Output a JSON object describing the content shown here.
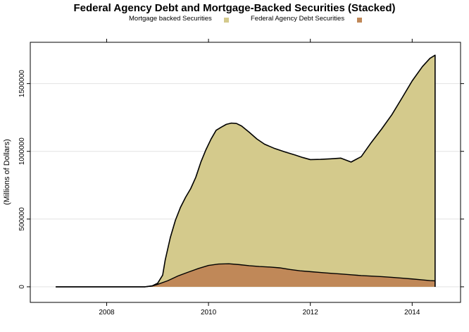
{
  "chart_data": {
    "type": "area",
    "stacked": true,
    "title": "Federal Agency Debt and Mortgage-Backed Securities (Stacked)",
    "xlabel": "",
    "ylabel": "(Millions of Dollars)",
    "xlim": [
      2006.5,
      2014.95
    ],
    "ylim": [
      -115000,
      1805000
    ],
    "x_ticks": [
      2008,
      2010,
      2012,
      2014
    ],
    "x_tick_labels": [
      "2008",
      "2010",
      "2012",
      "2014"
    ],
    "y_ticks": [
      0,
      500000,
      1000000,
      1500000
    ],
    "y_tick_labels": [
      "0",
      "500000",
      "1000000",
      "1500000"
    ],
    "grid": "horizontal",
    "legend_position": "top",
    "series": [
      {
        "name": "Federal Agency Debt Securities",
        "color": "#c08858",
        "points": [
          [
            2007.0,
            0
          ],
          [
            2008.0,
            0
          ],
          [
            2008.75,
            0
          ],
          [
            2008.9,
            6000
          ],
          [
            2009.0,
            18000
          ],
          [
            2009.2,
            45000
          ],
          [
            2009.4,
            80000
          ],
          [
            2009.6,
            108000
          ],
          [
            2009.8,
            135000
          ],
          [
            2010.0,
            158000
          ],
          [
            2010.2,
            168000
          ],
          [
            2010.4,
            170000
          ],
          [
            2010.6,
            164000
          ],
          [
            2010.8,
            156000
          ],
          [
            2011.0,
            150000
          ],
          [
            2011.2,
            146000
          ],
          [
            2011.4,
            140000
          ],
          [
            2011.6,
            128000
          ],
          [
            2011.8,
            118000
          ],
          [
            2012.0,
            112000
          ],
          [
            2012.2,
            106000
          ],
          [
            2012.4,
            100000
          ],
          [
            2012.6,
            95000
          ],
          [
            2012.8,
            89000
          ],
          [
            2013.0,
            83000
          ],
          [
            2013.2,
            79000
          ],
          [
            2013.4,
            75000
          ],
          [
            2013.6,
            70000
          ],
          [
            2013.8,
            64000
          ],
          [
            2014.0,
            58000
          ],
          [
            2014.2,
            51000
          ],
          [
            2014.35,
            46000
          ],
          [
            2014.45,
            44000
          ]
        ]
      },
      {
        "name": "Mortgage backed Securities",
        "color": "#d4ca8c",
        "points": [
          [
            2007.0,
            0
          ],
          [
            2008.0,
            0
          ],
          [
            2008.75,
            0
          ],
          [
            2008.9,
            2000
          ],
          [
            2009.0,
            8000
          ],
          [
            2009.1,
            55000
          ],
          [
            2009.15,
            160000
          ],
          [
            2009.25,
            310000
          ],
          [
            2009.35,
            420000
          ],
          [
            2009.45,
            500000
          ],
          [
            2009.55,
            560000
          ],
          [
            2009.65,
            610000
          ],
          [
            2009.75,
            680000
          ],
          [
            2009.85,
            780000
          ],
          [
            2009.95,
            860000
          ],
          [
            2010.05,
            930000
          ],
          [
            2010.15,
            990000
          ],
          [
            2010.25,
            1010000
          ],
          [
            2010.35,
            1030000
          ],
          [
            2010.45,
            1040000
          ],
          [
            2010.55,
            1040000
          ],
          [
            2010.65,
            1025000
          ],
          [
            2010.8,
            985000
          ],
          [
            2010.95,
            940000
          ],
          [
            2011.1,
            905000
          ],
          [
            2011.3,
            878000
          ],
          [
            2011.5,
            862000
          ],
          [
            2011.7,
            850000
          ],
          [
            2011.85,
            838000
          ],
          [
            2012.0,
            827000
          ],
          [
            2012.2,
            835000
          ],
          [
            2012.4,
            845000
          ],
          [
            2012.6,
            855000
          ],
          [
            2012.8,
            832000
          ],
          [
            2013.0,
            878000
          ],
          [
            2013.2,
            988000
          ],
          [
            2013.4,
            1090000
          ],
          [
            2013.6,
            1200000
          ],
          [
            2013.8,
            1330000
          ],
          [
            2014.0,
            1462000
          ],
          [
            2014.2,
            1574000
          ],
          [
            2014.35,
            1641000
          ],
          [
            2014.45,
            1666000
          ]
        ]
      }
    ]
  }
}
